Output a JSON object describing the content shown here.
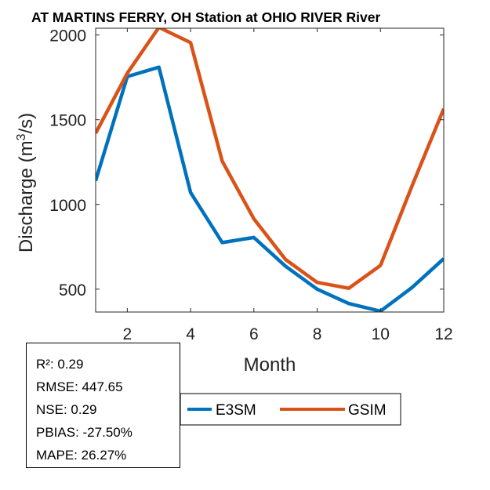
{
  "chart_data": {
    "type": "line",
    "title": "AT MARTINS FERRY, OH  Station at  OHIO RIVER  River",
    "xlabel": "Month",
    "ylabel": "Discharge (m³/s)",
    "ylabel_parts": {
      "main": "Discharge (m",
      "sup": "3",
      "end": "/s)"
    },
    "xlim": [
      1,
      12
    ],
    "ylim": [
      365,
      2040
    ],
    "xticks": [
      2,
      4,
      6,
      8,
      10,
      12
    ],
    "yticks": [
      500,
      1000,
      1500,
      2000
    ],
    "x": [
      1,
      2,
      3,
      4,
      5,
      6,
      7,
      8,
      9,
      10,
      11,
      12
    ],
    "series": [
      {
        "name": "E3SM",
        "color": "#0072BD",
        "values": [
          1140,
          1755,
          1810,
          1070,
          775,
          805,
          635,
          500,
          415,
          370,
          510,
          680
        ]
      },
      {
        "name": "GSIM",
        "color": "#D95319",
        "values": [
          1420,
          1775,
          2045,
          1955,
          1255,
          915,
          675,
          540,
          505,
          640,
          1110,
          1565
        ]
      }
    ],
    "grid": false,
    "legend": {
      "placement": "bottom-center",
      "entries": [
        "E3SM",
        "GSIM"
      ]
    }
  },
  "stats": {
    "r2": "R²: 0.29",
    "rmse": "RMSE: 447.65",
    "nse": "NSE: 0.29",
    "pbias": "PBIAS: -27.50%",
    "mape": "MAPE: 26.27%"
  }
}
